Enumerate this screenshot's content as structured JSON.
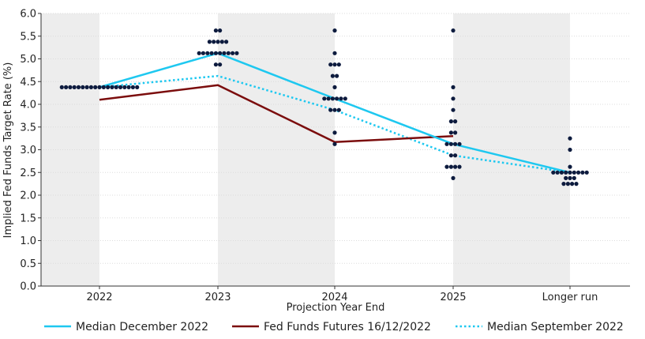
{
  "chart_data": {
    "type": "line",
    "title": "",
    "xlabel": "Projection Year End",
    "ylabel": "Implied Fed Funds Target Rate (%)",
    "ylim": [
      0,
      6
    ],
    "y_ticks": [
      "0.0",
      "0.5",
      "1.0",
      "1.5",
      "2.0",
      "2.5",
      "3.0",
      "3.5",
      "4.0",
      "4.5",
      "5.0",
      "5.5",
      "6.0"
    ],
    "categories": [
      "2022",
      "2023",
      "2024",
      "2025",
      "Longer run"
    ],
    "grid": true,
    "legend_position": "bottom",
    "series": [
      {
        "name": "Median December 2022",
        "style": "solid",
        "color": "#1ec8f0",
        "points": [
          {
            "x": "2022",
            "y": 4.375
          },
          {
            "x": "2023",
            "y": 5.125
          },
          {
            "x": "2024",
            "y": 4.125
          },
          {
            "x": "2025",
            "y": 3.125
          },
          {
            "x": "Longer run",
            "y": 2.5
          }
        ]
      },
      {
        "name": "Fed Funds Futures 16/12/2022",
        "style": "solid",
        "color": "#7b0d0d",
        "points": [
          {
            "x": "2022",
            "y": 4.1
          },
          {
            "x": "2023",
            "y": 4.42
          },
          {
            "x": "2024",
            "y": 3.17
          },
          {
            "x": "2025",
            "y": 3.3
          }
        ]
      },
      {
        "name": "Median September 2022",
        "style": "dotted",
        "color": "#1ec8f0",
        "points": [
          {
            "x": "2022",
            "y": 4.375
          },
          {
            "x": "2023",
            "y": 4.625
          },
          {
            "x": "2024",
            "y": 3.875
          },
          {
            "x": "2025",
            "y": 2.875
          },
          {
            "x": "Longer run",
            "y": 2.5
          }
        ]
      }
    ],
    "dot_plot": {
      "color": "#0d1b3e",
      "groups": [
        {
          "x": "2022",
          "levels": [
            {
              "y": 4.375,
              "count": 19
            }
          ]
        },
        {
          "x": "2023",
          "levels": [
            {
              "y": 5.625,
              "count": 2
            },
            {
              "y": 5.375,
              "count": 5
            },
            {
              "y": 5.125,
              "count": 10
            },
            {
              "y": 4.875,
              "count": 2
            }
          ]
        },
        {
          "x": "2024",
          "levels": [
            {
              "y": 5.625,
              "count": 1
            },
            {
              "y": 5.125,
              "count": 1
            },
            {
              "y": 4.875,
              "count": 3
            },
            {
              "y": 4.625,
              "count": 2
            },
            {
              "y": 4.375,
              "count": 1
            },
            {
              "y": 4.125,
              "count": 6
            },
            {
              "y": 3.875,
              "count": 3
            },
            {
              "y": 3.375,
              "count": 1
            },
            {
              "y": 3.125,
              "count": 1
            }
          ]
        },
        {
          "x": "2025",
          "levels": [
            {
              "y": 5.625,
              "count": 1
            },
            {
              "y": 4.375,
              "count": 1
            },
            {
              "y": 4.125,
              "count": 1
            },
            {
              "y": 3.875,
              "count": 1
            },
            {
              "y": 3.625,
              "count": 2
            },
            {
              "y": 3.375,
              "count": 2
            },
            {
              "y": 3.125,
              "count": 4
            },
            {
              "y": 2.875,
              "count": 2
            },
            {
              "y": 2.625,
              "count": 4
            },
            {
              "y": 2.375,
              "count": 1
            }
          ]
        },
        {
          "x": "Longer run",
          "levels": [
            {
              "y": 3.25,
              "count": 1
            },
            {
              "y": 3.0,
              "count": 1
            },
            {
              "y": 2.625,
              "count": 1
            },
            {
              "y": 2.5,
              "count": 9
            },
            {
              "y": 2.375,
              "count": 3
            },
            {
              "y": 2.25,
              "count": 4
            }
          ]
        }
      ]
    }
  }
}
